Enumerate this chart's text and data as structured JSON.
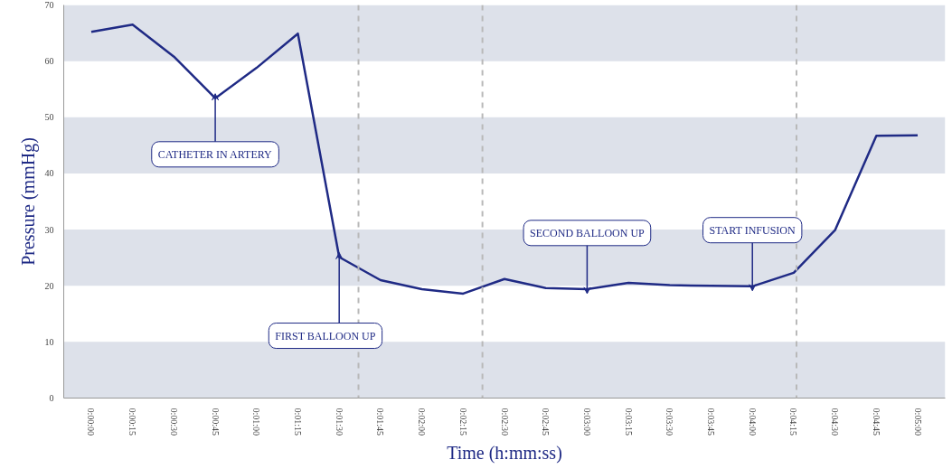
{
  "chart_data": {
    "type": "line",
    "xlabel": "Time (h:mm:ss)",
    "ylabel": "Pressure (mmHg)",
    "x": [
      0,
      15,
      30,
      45,
      60,
      75,
      90,
      105,
      120,
      135,
      150,
      165,
      180,
      195,
      210,
      225,
      240,
      255,
      270,
      285,
      300
    ],
    "series": [
      {
        "color": "#1f2a85",
        "values": [
          65.2,
          66.5,
          60.8,
          53.4,
          58.8,
          64.9,
          25.1,
          21.0,
          19.4,
          18.6,
          21.2,
          19.6,
          19.4,
          20.5,
          20.1,
          20.0,
          19.9,
          22.3,
          29.9,
          46.7,
          46.8
        ]
      }
    ],
    "xlim": [
      -10,
      310
    ],
    "ylim": [
      0,
      70
    ],
    "yticks": [
      0,
      10,
      20,
      30,
      40,
      50,
      60,
      70
    ],
    "xticks": [
      {
        "value": 0,
        "label": "0:00:00"
      },
      {
        "value": 15,
        "label": "0:00:15"
      },
      {
        "value": 30,
        "label": "0:00:30"
      },
      {
        "value": 45,
        "label": "0:00:45"
      },
      {
        "value": 60,
        "label": "0:01:00"
      },
      {
        "value": 75,
        "label": "0:01:15"
      },
      {
        "value": 90,
        "label": "0:01:30"
      },
      {
        "value": 105,
        "label": "0:01:45"
      },
      {
        "value": 120,
        "label": "0:02:00"
      },
      {
        "value": 135,
        "label": "0:02:15"
      },
      {
        "value": 150,
        "label": "0:02:30"
      },
      {
        "value": 165,
        "label": "0:02:45"
      },
      {
        "value": 180,
        "label": "0:03:00"
      },
      {
        "value": 195,
        "label": "0:03:15"
      },
      {
        "value": 210,
        "label": "0:03:30"
      },
      {
        "value": 225,
        "label": "0:03:45"
      },
      {
        "value": 240,
        "label": "0:04:00"
      },
      {
        "value": 255,
        "label": "0:04:15"
      },
      {
        "value": 270,
        "label": "0:04:30"
      },
      {
        "value": 285,
        "label": "0:04:45"
      },
      {
        "value": 300,
        "label": "0:05:00"
      }
    ],
    "bands": [
      {
        "axis": "y",
        "from": 0,
        "to": 10,
        "color": "#dde1ea"
      },
      {
        "axis": "y",
        "from": 20,
        "to": 30,
        "color": "#dde1ea"
      },
      {
        "axis": "y",
        "from": 40,
        "to": 50,
        "color": "#dde1ea"
      },
      {
        "axis": "y",
        "from": 60,
        "to": 70,
        "color": "#dde1ea"
      }
    ],
    "ref_lines": [
      {
        "axis": "x",
        "value": 97,
        "color": "#b8b8b8",
        "line_style": "dashed"
      },
      {
        "axis": "x",
        "value": 142,
        "color": "#b8b8b8",
        "line_style": "dashed"
      },
      {
        "axis": "x",
        "value": 256,
        "color": "#b8b8b8",
        "line_style": "dashed"
      }
    ],
    "annotations": [
      {
        "text": "CATHETER IN ARTERY",
        "x": 45,
        "y": 53.4
      },
      {
        "text": "FIRST BALLOON UP",
        "x": 90,
        "y": 25.1
      },
      {
        "text": "SECOND BALLOON UP",
        "x": 180,
        "y": 19.4
      },
      {
        "text": "START INFUSION",
        "x": 240,
        "y": 19.9
      }
    ],
    "grid": false,
    "marker": "none",
    "line_style": "solid"
  }
}
